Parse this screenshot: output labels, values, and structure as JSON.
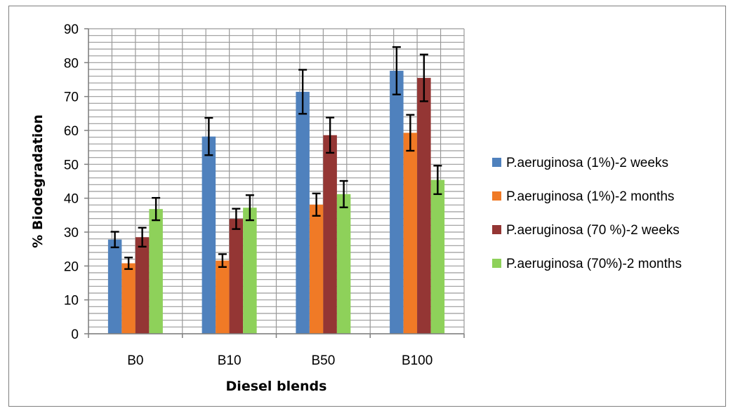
{
  "chart_data": {
    "type": "bar",
    "title": "",
    "xlabel": "Diesel blends",
    "ylabel": "% Biodegradation",
    "ylim": [
      0,
      90
    ],
    "yticks": [
      0,
      10,
      20,
      30,
      40,
      50,
      60,
      70,
      80,
      90
    ],
    "grid": true,
    "legend_position": "right",
    "categories": [
      "B0",
      "B10",
      "B50",
      "B100"
    ],
    "series": [
      {
        "name": "P.aeruginosa (1%)-2 weeks",
        "color": "#4f81bd",
        "values": [
          27.8,
          58.2,
          71.4,
          77.6
        ],
        "errors": [
          2.3,
          5.5,
          6.5,
          7.0
        ]
      },
      {
        "name": "P.aeruginosa (1%)-2 months",
        "color": "#f07a26",
        "values": [
          20.8,
          21.6,
          38.1,
          59.3
        ],
        "errors": [
          1.7,
          1.9,
          3.3,
          5.3
        ]
      },
      {
        "name": "P.aeruginosa (70 %)-2 weeks",
        "color": "#943634",
        "values": [
          28.5,
          33.9,
          58.6,
          75.5
        ],
        "errors": [
          2.8,
          3.0,
          5.2,
          6.9
        ]
      },
      {
        "name": "P.aeruginosa (70%)-2 months",
        "color": "#8ed15a",
        "values": [
          36.8,
          37.2,
          41.2,
          45.4
        ],
        "errors": [
          3.3,
          3.7,
          3.9,
          4.2
        ]
      }
    ]
  }
}
